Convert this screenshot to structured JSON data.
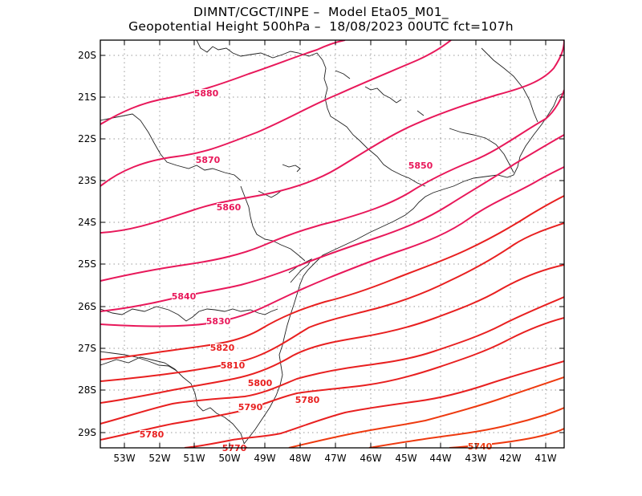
{
  "header": {
    "line1": "DIMNT/CGCT/INPE –  Model Eta05_M01_",
    "line2": "Geopotential Height 500hPa –  18/08/2023 00UTC fct=107h"
  },
  "map": {
    "lat_labels": [
      "20S",
      "21S",
      "22S",
      "23S",
      "24S",
      "25S",
      "26S",
      "27S",
      "28S",
      "29S"
    ],
    "lon_labels": [
      "53W",
      "52W",
      "51W",
      "50W",
      "49W",
      "48W",
      "47W",
      "46W",
      "45W",
      "44W",
      "43W",
      "42W",
      "41W"
    ],
    "contour_labels": [
      "5880",
      "5870",
      "5860",
      "5850",
      "5840",
      "5830",
      "5820",
      "5810",
      "5800",
      "5790",
      "5780",
      "5780",
      "5770",
      "5740"
    ],
    "colors": {
      "high": "#e8185a",
      "mid": "#e82020",
      "low": "#ee3a10",
      "coast": "#222222",
      "grid": "#9a9a9a"
    }
  }
}
